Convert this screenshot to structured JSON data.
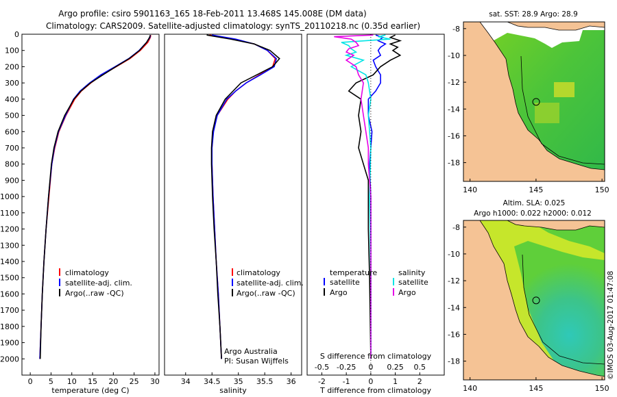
{
  "title": {
    "line1": "Argo profile: csiro 5901163_165 18-Feb-2011 13.468S 145.008E (DM data)",
    "line2": "Climatology: CARS2009. Satellite-adjusted climatology: synTS_20110218.nc (0.35d earlier)"
  },
  "depth_ticks": [
    "0",
    "100",
    "200",
    "300",
    "400",
    "500",
    "600",
    "700",
    "800",
    "900",
    "1000",
    "1100",
    "1200",
    "1300",
    "1400",
    "1500",
    "1600",
    "1700",
    "1800",
    "1900",
    "2000"
  ],
  "colors": {
    "climatology": "#ff0000",
    "satellite": "#0000ff",
    "argo": "#000000",
    "salinity_sat": "#00e5e5",
    "salinity_argo": "#e600e6",
    "land": "#f5c395",
    "ocean_warm": "#66cc33",
    "ocean_cool": "#33cc99"
  },
  "chart_data": [
    {
      "type": "line",
      "name": "temperature-profile",
      "xlabel": "temperature (deg C)",
      "xlim": [
        -2,
        31
      ],
      "ylim": [
        2100,
        0
      ],
      "xticks": [
        0,
        5,
        10,
        15,
        20,
        25,
        30
      ],
      "xtick_labels": [
        "0",
        "5",
        "10",
        "15",
        "20",
        "25",
        "30"
      ],
      "legend": [
        "climatology",
        "satellite-adj. clim.",
        "Argo(..raw -QC)"
      ],
      "series": [
        {
          "name": "climatology",
          "depth": [
            5,
            20,
            50,
            100,
            150,
            200,
            250,
            300,
            350,
            400,
            500,
            600,
            700,
            800,
            1000,
            1200,
            1400,
            1600,
            1800,
            2000
          ],
          "values": [
            29.0,
            28.9,
            28.3,
            26.5,
            24.0,
            20.7,
            17.3,
            14.6,
            12.3,
            10.7,
            8.6,
            6.9,
            5.9,
            5.2,
            4.5,
            3.8,
            3.3,
            2.9,
            2.6,
            2.3
          ]
        },
        {
          "name": "satellite-adj. clim.",
          "depth": [
            5,
            20,
            50,
            100,
            150,
            200,
            250,
            300,
            350,
            400,
            500,
            600,
            700,
            800,
            1000,
            1200,
            1400,
            1600,
            1800,
            2000
          ],
          "values": [
            28.9,
            28.8,
            28.0,
            26.2,
            23.7,
            20.4,
            17.0,
            14.3,
            12.0,
            10.4,
            8.5,
            6.8,
            5.8,
            5.2,
            4.4,
            3.8,
            3.3,
            2.9,
            2.6,
            2.3
          ]
        },
        {
          "name": "Argo",
          "depth": [
            5,
            20,
            50,
            100,
            150,
            200,
            250,
            300,
            350,
            400,
            500,
            600,
            700,
            800,
            1000,
            1200,
            1400,
            1600,
            1800,
            2000
          ],
          "values": [
            28.9,
            28.7,
            28.0,
            26.3,
            23.8,
            20.6,
            17.5,
            14.5,
            12.2,
            10.5,
            8.3,
            6.7,
            5.7,
            5.1,
            4.4,
            3.8,
            3.3,
            2.9,
            2.6,
            2.4
          ]
        }
      ]
    },
    {
      "type": "line",
      "name": "salinity-profile",
      "xlabel": "salinity",
      "xlim": [
        33.6,
        36.2
      ],
      "ylim": [
        2100,
        0
      ],
      "xticks": [
        34,
        34.5,
        35,
        35.5,
        36
      ],
      "xtick_labels": [
        "34",
        "34.5",
        "35",
        "35.5",
        "36"
      ],
      "legend": [
        "climatology",
        "satellite-adj. clim.",
        "Argo(..raw -QC)"
      ],
      "annotation": [
        "Argo Australia",
        "PI: Susan Wijffels"
      ],
      "series": [
        {
          "name": "climatology",
          "depth": [
            5,
            30,
            60,
            100,
            150,
            200,
            250,
            300,
            350,
            400,
            500,
            600,
            700,
            800,
            1000,
            1200,
            1400,
            1600,
            1800,
            2000
          ],
          "values": [
            34.45,
            34.9,
            35.3,
            35.55,
            35.7,
            35.65,
            35.4,
            35.15,
            34.95,
            34.8,
            34.6,
            34.52,
            34.5,
            34.5,
            34.52,
            34.55,
            34.58,
            34.62,
            34.65,
            34.68
          ]
        },
        {
          "name": "satellite-adj. clim.",
          "depth": [
            5,
            30,
            60,
            100,
            150,
            200,
            250,
            300,
            350,
            400,
            500,
            600,
            700,
            800,
            1000,
            1200,
            1400,
            1600,
            1800,
            2000
          ],
          "values": [
            34.5,
            34.95,
            35.3,
            35.55,
            35.72,
            35.68,
            35.42,
            35.15,
            34.95,
            34.78,
            34.6,
            34.53,
            34.5,
            34.5,
            34.52,
            34.55,
            34.58,
            34.62,
            34.65,
            34.68
          ]
        },
        {
          "name": "Argo",
          "depth": [
            5,
            30,
            60,
            100,
            150,
            200,
            250,
            300,
            350,
            400,
            500,
            600,
            700,
            800,
            1000,
            1200,
            1400,
            1600,
            1800,
            2000
          ],
          "values": [
            34.4,
            34.85,
            35.3,
            35.6,
            35.78,
            35.65,
            35.35,
            35.05,
            34.9,
            34.75,
            34.58,
            34.51,
            34.49,
            34.49,
            34.51,
            34.54,
            34.58,
            34.61,
            34.65,
            34.68
          ]
        }
      ]
    },
    {
      "type": "line",
      "name": "difference-profile",
      "xlabel": "T difference from climatology",
      "x2label": "S difference from climatology",
      "xlim": [
        -2.6,
        3
      ],
      "ylim": [
        2100,
        0
      ],
      "xticks": [
        -2,
        -1,
        0,
        1,
        2
      ],
      "xtick_labels": [
        "-2",
        "-1",
        "0",
        "1",
        "2"
      ],
      "x2ticks": [
        -2,
        -1,
        0,
        1,
        2
      ],
      "x2tick_labels": [
        "-0.5",
        "-0.25",
        "0",
        "0.25",
        "0.5"
      ],
      "legend_temperature": {
        "heading": "temperature",
        "items": [
          "satellite",
          "Argo"
        ]
      },
      "legend_salinity": {
        "heading": "salinity",
        "items": [
          "satellite",
          "Argo"
        ]
      },
      "series": [
        {
          "name": "T satellite",
          "depth": [
            5,
            20,
            40,
            60,
            80,
            100,
            130,
            160,
            200,
            250,
            300,
            350,
            400,
            500,
            600,
            700,
            800,
            1000,
            1200,
            1500,
            2000
          ],
          "values": [
            0.2,
            0.5,
            0.3,
            0.6,
            0.4,
            0.3,
            0.4,
            0.1,
            0.2,
            0.4,
            0.4,
            0.2,
            -0.1,
            -0.1,
            0.05,
            0.0,
            -0.05,
            0.0,
            0.0,
            0.0,
            0.0
          ]
        },
        {
          "name": "T Argo",
          "depth": [
            5,
            20,
            40,
            60,
            80,
            100,
            130,
            160,
            200,
            250,
            300,
            350,
            400,
            500,
            600,
            700,
            800,
            850,
            900,
            1000,
            1200,
            1500,
            2000
          ],
          "values": [
            1.0,
            0.8,
            1.2,
            0.8,
            1.1,
            0.9,
            1.2,
            0.8,
            0.4,
            0.1,
            -0.6,
            -0.9,
            -0.4,
            -0.5,
            -0.4,
            -0.5,
            -0.3,
            -0.2,
            -0.1,
            -0.1,
            -0.1,
            -0.05,
            0.0
          ]
        },
        {
          "name": "S satellite",
          "depth": [
            5,
            15,
            30,
            50,
            70,
            90,
            110,
            130,
            160,
            200,
            250,
            300,
            400,
            500,
            700,
            1000,
            1500,
            2000
          ],
          "values": [
            0.6,
            0.3,
            0.8,
            -1.2,
            -0.9,
            -0.8,
            -0.6,
            -1.0,
            -0.3,
            -0.8,
            -0.2,
            -0.1,
            0.0,
            -0.1,
            0.0,
            -0.05,
            0.0,
            0.0
          ]
        },
        {
          "name": "S Argo",
          "depth": [
            5,
            15,
            30,
            50,
            70,
            90,
            110,
            130,
            160,
            200,
            250,
            300,
            400,
            500,
            600,
            700,
            800,
            1000,
            1500,
            2000
          ],
          "values": [
            0.1,
            -1.5,
            -0.8,
            -0.6,
            -0.5,
            -0.9,
            -1.0,
            -0.7,
            -1.0,
            -0.6,
            -0.5,
            -0.3,
            -0.4,
            -0.3,
            -0.2,
            -0.1,
            -0.1,
            0.0,
            0.0,
            0.0
          ]
        }
      ]
    },
    {
      "type": "heatmap",
      "name": "sst-map",
      "title": "sat. SST: 28.9 Argo: 28.9",
      "xticks": [
        140,
        145,
        150
      ],
      "xtick_labels": [
        "140",
        "145",
        "150"
      ],
      "yticks": [
        -8,
        -10,
        -12,
        -14,
        -16,
        -18
      ],
      "ytick_labels": [
        "-8",
        "-10",
        "-12",
        "-14",
        "-16",
        "-18"
      ],
      "xlim": [
        139.5,
        150.2
      ],
      "ylim": [
        -19.4,
        -7.5
      ],
      "marker": {
        "lon": 145.008,
        "lat": -13.468
      }
    },
    {
      "type": "heatmap",
      "name": "sla-map",
      "title_line1": "Altim. SLA: 0.025",
      "title_line2": "Argo h1000: 0.022 h2000: 0.012",
      "xticks": [
        140,
        145,
        150
      ],
      "xtick_labels": [
        "140",
        "145",
        "150"
      ],
      "yticks": [
        -8,
        -10,
        -12,
        -14,
        -16,
        -18
      ],
      "ytick_labels": [
        "-8",
        "-10",
        "-12",
        "-14",
        "-16",
        "-18"
      ],
      "xlim": [
        139.5,
        150.2
      ],
      "ylim": [
        -19.4,
        -7.5
      ],
      "marker": {
        "lon": 145.008,
        "lat": -13.468
      }
    }
  ],
  "credit": "©IMOS 03-Aug-2017 01:47:08"
}
